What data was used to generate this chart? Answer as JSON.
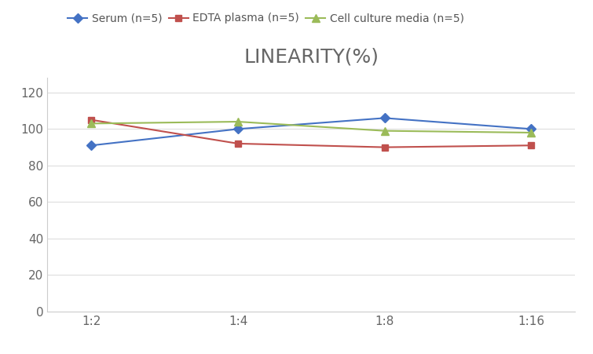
{
  "title": "LINEARITY(%)",
  "title_fontsize": 18,
  "title_fontweight": "normal",
  "title_color": "#666666",
  "x_labels": [
    "1:2",
    "1:4",
    "1:8",
    "1:16"
  ],
  "x_positions": [
    0,
    1,
    2,
    3
  ],
  "series": [
    {
      "label": "Serum (n=5)",
      "values": [
        91,
        100,
        106,
        100
      ],
      "color": "#4472C4",
      "marker": "D",
      "markersize": 6,
      "linewidth": 1.5
    },
    {
      "label": "EDTA plasma (n=5)",
      "values": [
        105,
        92,
        90,
        91
      ],
      "color": "#C0504D",
      "marker": "s",
      "markersize": 6,
      "linewidth": 1.5
    },
    {
      "label": "Cell culture media (n=5)",
      "values": [
        103,
        104,
        99,
        98
      ],
      "color": "#9BBB59",
      "marker": "^",
      "markersize": 7,
      "linewidth": 1.5
    }
  ],
  "ylim": [
    0,
    128
  ],
  "yticks": [
    0,
    20,
    40,
    60,
    80,
    100,
    120
  ],
  "grid_color": "#DDDDDD",
  "background_color": "#FFFFFF",
  "legend_fontsize": 10,
  "tick_fontsize": 11,
  "tick_color": "#666666",
  "spine_color": "#CCCCCC"
}
